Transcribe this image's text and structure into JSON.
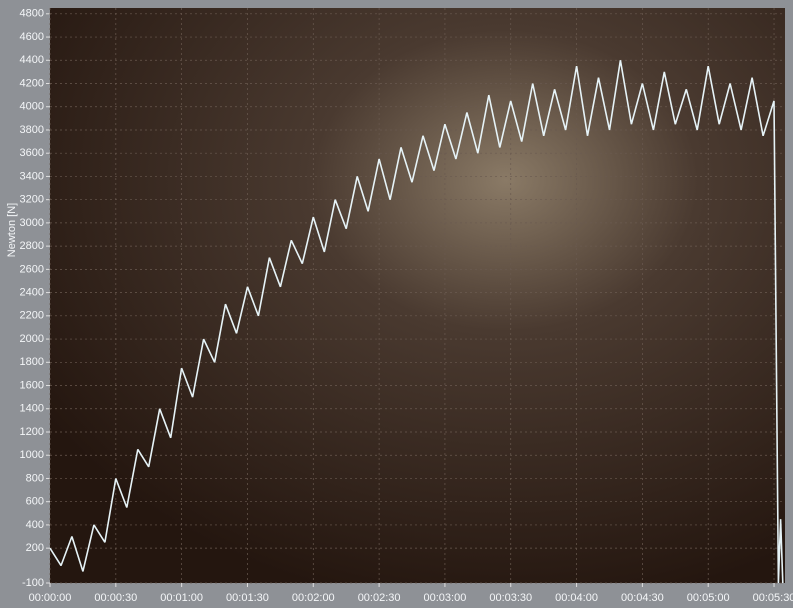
{
  "chart_data": {
    "type": "line",
    "y_label": "Newton [N]",
    "x": [
      0,
      5,
      10,
      15,
      20,
      25,
      30,
      35,
      40,
      45,
      50,
      55,
      60,
      65,
      70,
      75,
      80,
      85,
      90,
      95,
      100,
      105,
      110,
      115,
      120,
      125,
      130,
      135,
      140,
      145,
      150,
      155,
      160,
      165,
      170,
      175,
      180,
      185,
      190,
      195,
      200,
      205,
      210,
      215,
      220,
      225,
      230,
      235,
      240,
      245,
      250,
      255,
      260,
      265,
      270,
      275,
      280,
      285,
      290,
      295,
      300,
      305,
      310,
      315,
      320,
      325,
      330,
      332,
      333,
      334
    ],
    "series": [
      {
        "color": "#e6f3f7",
        "values": [
          200,
          50,
          300,
          0,
          400,
          250,
          800,
          550,
          1050,
          900,
          1400,
          1150,
          1750,
          1500,
          2000,
          1800,
          2300,
          2050,
          2450,
          2200,
          2700,
          2450,
          2850,
          2650,
          3050,
          2750,
          3200,
          2950,
          3400,
          3100,
          3550,
          3200,
          3650,
          3350,
          3750,
          3450,
          3850,
          3550,
          3950,
          3600,
          4100,
          3650,
          4050,
          3700,
          4200,
          3750,
          4150,
          3800,
          4350,
          3750,
          4250,
          3800,
          4400,
          3850,
          4200,
          3800,
          4300,
          3850,
          4150,
          3800,
          4350,
          3850,
          4200,
          3800,
          4250,
          3750,
          4050,
          -100,
          450,
          -100
        ]
      }
    ],
    "xlim": [
      0,
      335
    ],
    "xticks": [
      {
        "value": 0,
        "label": "00:00:00"
      },
      {
        "value": 30,
        "label": "00:00:30"
      },
      {
        "value": 60,
        "label": "00:01:00"
      },
      {
        "value": 90,
        "label": "00:01:30"
      },
      {
        "value": 120,
        "label": "00:02:00"
      },
      {
        "value": 150,
        "label": "00:02:30"
      },
      {
        "value": 180,
        "label": "00:03:00"
      },
      {
        "value": 210,
        "label": "00:03:30"
      },
      {
        "value": 240,
        "label": "00:04:00"
      },
      {
        "value": 270,
        "label": "00:04:30"
      },
      {
        "value": 300,
        "label": "00:05:00"
      },
      {
        "value": 330,
        "label": "00:05:30"
      }
    ],
    "ylim": [
      -100,
      4850
    ],
    "yticks": [
      -100,
      200,
      400,
      600,
      800,
      1000,
      1200,
      1400,
      1600,
      1800,
      2000,
      2200,
      2400,
      2600,
      2800,
      3000,
      3200,
      3400,
      3600,
      3800,
      4000,
      4200,
      4400,
      4600,
      4800
    ],
    "grid": true
  }
}
